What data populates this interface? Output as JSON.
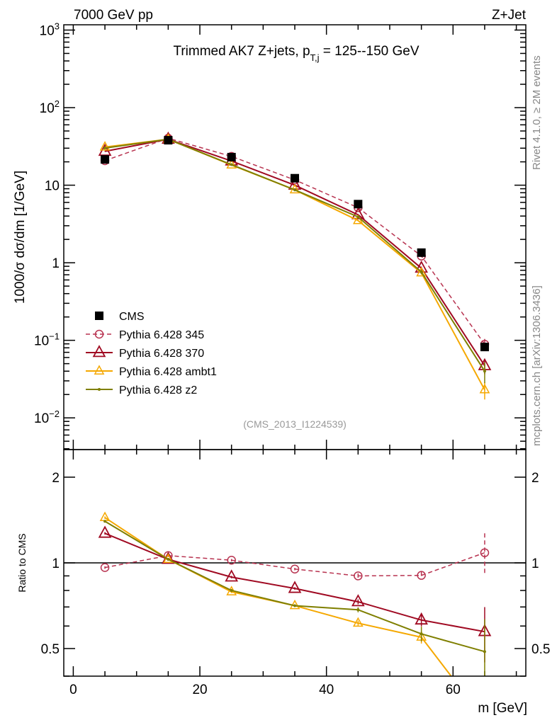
{
  "header": {
    "left": "7000 GeV pp",
    "right": "Z+Jet"
  },
  "side_text": {
    "top": "Rivet 4.1.0, ≥ 2M events",
    "bottom": "mcplots.cern.ch [arXiv:1306.3436]"
  },
  "watermark": "(CMS_2013_I1224539)",
  "chart_data": [
    {
      "type": "line",
      "title": "Trimmed AK7 Z+jets, p_T,j = 125--150 GeV",
      "title_main": "Trimmed AK7 Z+jets, p",
      "title_sub": "T,j",
      "title_rest": " = 125--150 GeV",
      "ylabel": "1000/σ  dσ/dm [1/GeV]",
      "yscale": "log",
      "ylim": [
        0.0039,
        1170
      ],
      "yticks": [
        {
          "v": 1000,
          "b": "10",
          "e": "3"
        },
        {
          "v": 100,
          "b": "10",
          "e": "2"
        },
        {
          "v": 10,
          "b": "10",
          "e": ""
        },
        {
          "v": 1,
          "b": "1",
          "e": ""
        },
        {
          "v": 0.1,
          "b": "10",
          "e": "−1"
        },
        {
          "v": 0.01,
          "b": "10",
          "e": "−2"
        }
      ],
      "x": [
        5,
        15,
        25,
        35,
        45,
        55,
        65
      ],
      "legend_position": "bottom-left",
      "series": [
        {
          "name": "CMS",
          "color": "#000000",
          "marker": "square",
          "line": "none",
          "values": [
            21.5,
            38,
            23,
            12.3,
            5.7,
            1.35,
            0.082
          ]
        },
        {
          "name": "Pythia 6.428 345",
          "color": "#b83350",
          "marker": "circle",
          "line": "dashed",
          "values": [
            20.7,
            40.3,
            23.5,
            11.7,
            5.13,
            1.22,
            0.089
          ],
          "err": [
            0.01,
            0.01,
            0.01,
            0.01,
            0.02,
            0.03,
            0.17
          ]
        },
        {
          "name": "Pythia 6.428 370",
          "color": "#a00a22",
          "marker": "triangle",
          "line": "solid",
          "values": [
            27.3,
            39.1,
            20.5,
            10.0,
            4.16,
            0.85,
            0.047
          ],
          "err": [
            0.01,
            0.01,
            0.01,
            0.01,
            0.02,
            0.05,
            0.22
          ]
        },
        {
          "name": "Pythia 6.428 ambt1",
          "color": "#f5a800",
          "marker": "triangle-small",
          "line": "solid",
          "values": [
            31,
            39.1,
            18.2,
            8.7,
            3.5,
            0.74,
            0.023
          ],
          "err": [
            0.01,
            0.01,
            0.01,
            0.01,
            0.02,
            0.05,
            0.25
          ]
        },
        {
          "name": "Pythia 6.428 z2",
          "color": "#7f7f00",
          "marker": "dot",
          "line": "solid",
          "values": [
            30.1,
            39.1,
            18.4,
            8.7,
            3.9,
            0.76,
            0.04
          ],
          "err": [
            0.01,
            0.01,
            0.01,
            0.01,
            0.02,
            0.06,
            0.3
          ]
        }
      ]
    },
    {
      "type": "line",
      "ylabel": "Ratio to CMS",
      "xlabel": "m [GeV]",
      "yscale": "log",
      "ylim": [
        0.4,
        2.5
      ],
      "yticks": [
        {
          "v": 2,
          "label": "2"
        },
        {
          "v": 1,
          "label": "1"
        },
        {
          "v": 0.5,
          "label": "0.5"
        }
      ],
      "xlim": [
        -1.5,
        71.5
      ],
      "xticks": [
        {
          "v": 0,
          "label": "0"
        },
        {
          "v": 20,
          "label": "20"
        },
        {
          "v": 40,
          "label": "40"
        },
        {
          "v": 60,
          "label": "60"
        }
      ],
      "reference": 1
    }
  ]
}
